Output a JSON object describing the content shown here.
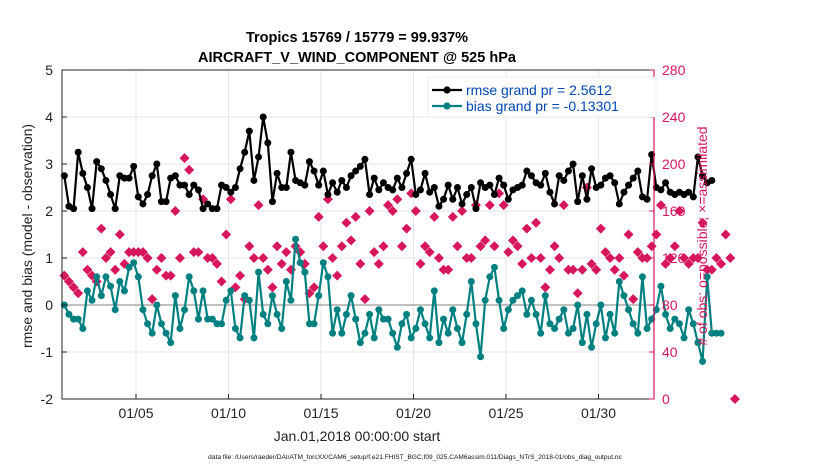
{
  "chart_data": {
    "type": "line",
    "title_line1": "Tropics 15769 / 15779 = 99.937%",
    "title_line2": "AIRCRAFT_V_WIND_COMPONENT @ 525 hPa",
    "xlabel": "Jan.01,2018 00:00:00 start",
    "ylabel_left": "rmse and bias (model - observation)",
    "ylabel_right": "# of obs: o=possible; ×=assimilated",
    "footer": "data file: /Users/raeder/DAI/ATM_forcXX/CAM6_setup/f.e21.FHIST_BGC.f09_025.CAM6assim.011/Diags_NTrS_2018-01/obs_diag_output.nc",
    "xlim": [
      1,
      33
    ],
    "ylim_left": [
      -2,
      5
    ],
    "ylim_right": [
      0,
      280
    ],
    "x_ticks": [
      5,
      10,
      15,
      20,
      25,
      30
    ],
    "x_tick_labels": [
      "01/05",
      "01/10",
      "01/15",
      "01/20",
      "01/25",
      "01/30"
    ],
    "y_left_ticks": [
      -2,
      -1,
      0,
      1,
      2,
      3,
      4,
      5
    ],
    "y_left_tick_labels": [
      "-2",
      "-1",
      "0",
      "1",
      "2",
      "3",
      "4",
      "5"
    ],
    "y_right_ticks": [
      0,
      40,
      80,
      120,
      160,
      200,
      240,
      280
    ],
    "y_right_tick_labels": [
      "0",
      "40",
      "80",
      "120",
      "160",
      "200",
      "240",
      "280"
    ],
    "zero_line": 0,
    "x_start": 1.125,
    "x_step": 0.25,
    "legend": {
      "position": "top-right",
      "entries": [
        "rmse grand pr = 2.5612",
        "bias grand pr = -0.13301"
      ]
    },
    "colors": {
      "rmse": "#000000",
      "bias": "#008080",
      "obs": "#d6175b",
      "zero_line": "#999999",
      "legend_text": "#0047b3"
    },
    "series": [
      {
        "name": "rmse",
        "axis": "left",
        "values": [
          2.75,
          2.1,
          2.05,
          3.25,
          2.8,
          2.5,
          2.05,
          3.05,
          2.9,
          2.65,
          2.35,
          2.05,
          2.75,
          2.7,
          2.7,
          2.95,
          2.3,
          2.15,
          2.35,
          2.75,
          3.0,
          2.2,
          2.2,
          2.7,
          2.75,
          2.55,
          2.55,
          2.35,
          2.55,
          2.45,
          2.05,
          2.15,
          2.05,
          2.05,
          2.55,
          2.5,
          2.4,
          2.5,
          2.9,
          3.25,
          3.7,
          2.65,
          3.15,
          4.0,
          3.45,
          2.2,
          2.8,
          2.5,
          2.5,
          3.25,
          2.65,
          2.6,
          2.55,
          3.05,
          2.85,
          2.55,
          2.85,
          2.35,
          2.6,
          2.4,
          2.65,
          2.5,
          2.75,
          2.85,
          2.95,
          3.1,
          2.35,
          2.7,
          2.45,
          2.6,
          2.5,
          2.45,
          2.7,
          2.5,
          2.8,
          3.1,
          2.35,
          2.45,
          2.8,
          2.4,
          2.5,
          2.1,
          2.25,
          2.55,
          2.25,
          2.5,
          2.15,
          2.35,
          2.5,
          2.05,
          2.6,
          2.5,
          2.55,
          2.35,
          2.7,
          2.55,
          2.25,
          2.45,
          2.5,
          2.55,
          2.85,
          2.75,
          2.6,
          2.55,
          2.8,
          2.4,
          2.15,
          2.75,
          2.65,
          2.85,
          3.0,
          2.2,
          2.75,
          2.25,
          2.9,
          2.5,
          2.55,
          2.7,
          2.75,
          2.6,
          2.15,
          2.4,
          2.55,
          2.7,
          2.85,
          2.3,
          2.25,
          3.2,
          2.5,
          2.45,
          2.6,
          2.4,
          2.35,
          2.4,
          2.35,
          2.4,
          2.3,
          3.15,
          2.75,
          2.6,
          2.65
        ]
      },
      {
        "name": "bias",
        "axis": "left",
        "values": [
          0.0,
          -0.2,
          -0.3,
          -0.3,
          -0.5,
          0.3,
          0.1,
          0.6,
          0.2,
          0.6,
          0.4,
          -0.1,
          0.5,
          0.3,
          0.8,
          0.9,
          0.6,
          -0.1,
          -0.4,
          -0.6,
          0.0,
          -0.4,
          -0.6,
          -0.8,
          0.2,
          -0.5,
          -0.1,
          0.6,
          0.3,
          -0.3,
          0.3,
          -0.3,
          -0.3,
          -0.4,
          -0.4,
          0.1,
          0.3,
          -0.5,
          -0.7,
          0.2,
          0.1,
          -0.7,
          0.7,
          -0.2,
          -0.4,
          0.2,
          -0.2,
          -0.5,
          0.5,
          0.1,
          1.4,
          0.9,
          0.7,
          -0.4,
          -0.4,
          0.2,
          0.9,
          0.6,
          -0.6,
          -0.1,
          -0.6,
          -0.2,
          0.2,
          -0.3,
          -0.8,
          -0.6,
          -0.2,
          -0.7,
          -0.1,
          -0.3,
          -0.3,
          -0.6,
          -0.9,
          -0.4,
          -0.2,
          -0.7,
          -0.5,
          -0.1,
          -0.4,
          -0.7,
          0.3,
          -0.8,
          -0.3,
          -0.6,
          -0.1,
          -0.5,
          -0.8,
          -0.2,
          0.5,
          -0.4,
          -1.1,
          0.1,
          0.6,
          0.8,
          0.1,
          -0.5,
          -0.1,
          0.1,
          0.2,
          0.3,
          -0.2,
          0.1,
          -0.2,
          -0.6,
          0.2,
          -0.4,
          -0.5,
          -0.3,
          -0.1,
          -0.6,
          -0.5,
          0.0,
          -0.8,
          -0.2,
          -0.9,
          -0.4,
          0.0,
          -0.7,
          -0.2,
          -0.6,
          0.5,
          0.2,
          -0.1,
          -0.4,
          -0.6,
          0.6,
          -0.5,
          -0.3,
          -0.1,
          0.4,
          -0.2,
          -0.5,
          -0.3,
          -0.4,
          -0.7,
          -0.1,
          -0.4,
          -0.8,
          -1.2,
          0.6,
          -0.6,
          -0.6,
          -0.6
        ]
      },
      {
        "name": "obs_count",
        "axis": "right",
        "values": [
          105,
          100,
          95,
          90,
          125,
          110,
          105,
          100,
          145,
          120,
          125,
          110,
          140,
          115,
          125,
          125,
          125,
          125,
          120,
          85,
          110,
          120,
          105,
          105,
          160,
          120,
          205,
          195,
          125,
          125,
          170,
          120,
          120,
          115,
          100,
          140,
          170,
          95,
          105,
          85,
          130,
          120,
          165,
          120,
          110,
          95,
          130,
          115,
          125,
          110,
          130,
          125,
          115,
          90,
          95,
          155,
          130,
          170,
          120,
          105,
          130,
          150,
          135,
          155,
          115,
          85,
          160,
          125,
          115,
          130,
          165,
          160,
          170,
          130,
          145,
          175,
          160,
          115,
          130,
          125,
          155,
          120,
          110,
          110,
          155,
          130,
          160,
          120,
          120,
          165,
          130,
          135,
          165,
          130,
          175,
          165,
          125,
          135,
          130,
          115,
          145,
          120,
          150,
          120,
          95,
          110,
          130,
          120,
          165,
          110,
          110,
          90,
          110,
          180,
          115,
          110,
          145,
          125,
          120,
          110,
          120,
          105,
          140,
          85,
          125,
          120,
          120,
          130,
          140,
          165,
          115,
          120,
          130,
          160,
          120,
          115,
          120,
          120,
          150,
          110,
          110,
          120,
          115,
          140,
          120,
          0
        ]
      }
    ]
  }
}
